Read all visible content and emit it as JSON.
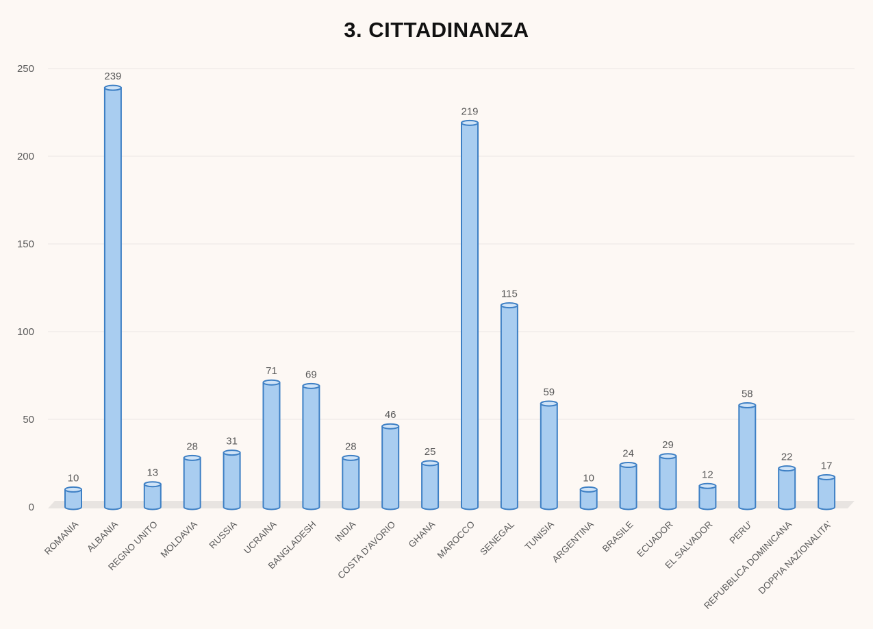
{
  "chart_data": {
    "type": "bar",
    "title": "3. CITTADINANZA",
    "categories": [
      "ROMANIA",
      "ALBANIA",
      "REGNO UNITO",
      "MOLDAVIA",
      "RUSSIA",
      "UCRAINA",
      "BANGLADESH",
      "INDIA",
      "COSTA D'AVORIO",
      "GHANA",
      "MAROCCO",
      "SENEGAL",
      "TUNISIA",
      "ARGENTINA",
      "BRASILE",
      "ECUADOR",
      "EL SALVADOR",
      "PERU'",
      "REPUBBLICA DOMINICANA",
      "DOPPIA NAZIONALITA'"
    ],
    "values": [
      10,
      239,
      13,
      28,
      31,
      71,
      69,
      28,
      46,
      25,
      219,
      115,
      59,
      10,
      24,
      29,
      12,
      58,
      22,
      17
    ],
    "ylim": [
      0,
      250
    ],
    "yticks": [
      0,
      50,
      100,
      150,
      200,
      250
    ],
    "xlabel": "",
    "ylabel": "",
    "grid": true,
    "legend": "none",
    "style": "3d-cylinder",
    "colors": {
      "bar_fill": "#a9cdf0",
      "bar_stroke": "#3d7fc4",
      "bar_top": "#cfe3f7",
      "grid": "#eae6e3",
      "floor": "#e8e4e1",
      "text": "#595959"
    }
  }
}
